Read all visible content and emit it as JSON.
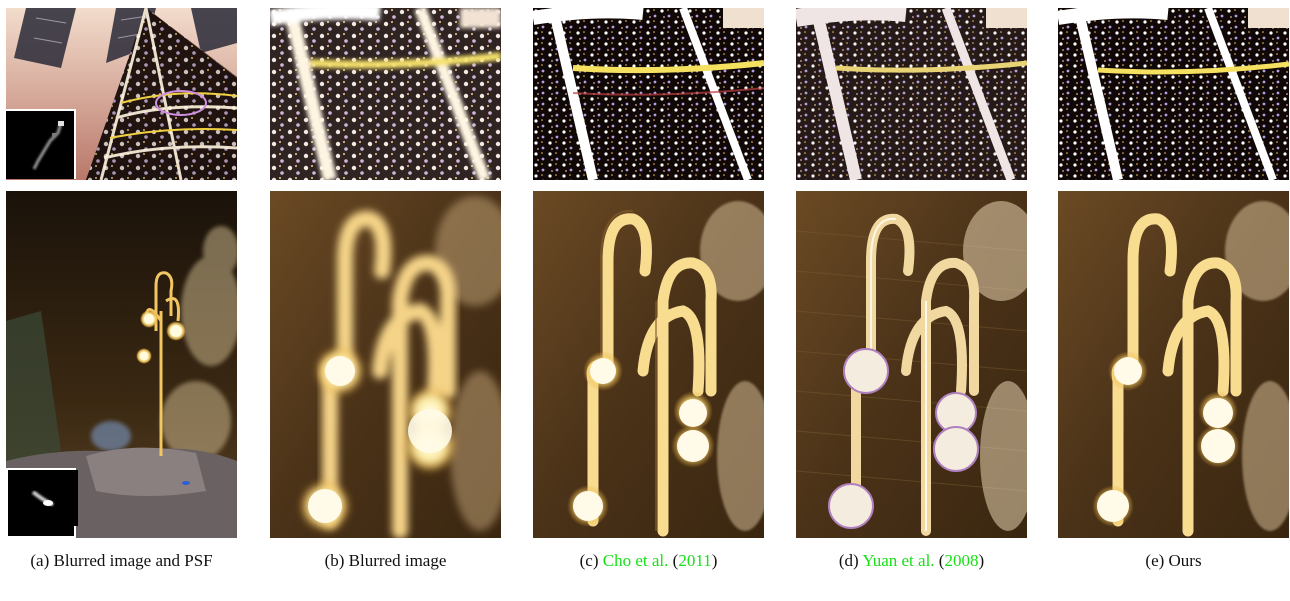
{
  "captions": [
    {
      "label": "(a)",
      "text": "Blurred image and PSF"
    },
    {
      "label": "(b)",
      "text": "Blurred image"
    },
    {
      "label": "(c)",
      "author": "Cho et al.",
      "year": "2011"
    },
    {
      "label": "(d)",
      "author": "Yuan et al.",
      "year": "2008"
    },
    {
      "label": "(e)",
      "text": "Ours"
    }
  ],
  "colors": {
    "citation": "#16e016",
    "lamp_glow": "#fff2b0",
    "night_sky": "#2a1c0c"
  }
}
